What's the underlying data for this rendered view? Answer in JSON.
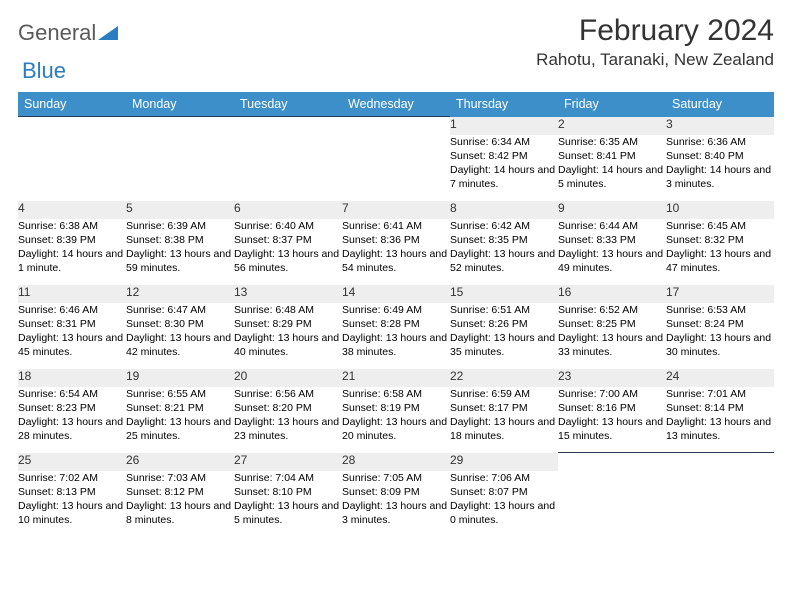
{
  "brand": {
    "part1": "General",
    "part2": "Blue"
  },
  "title": "February 2024",
  "location": "Rahotu, Taranaki, New Zealand",
  "colors": {
    "header_bg": "#3d8fc9",
    "header_text": "#ffffff",
    "daynum_bg": "#eeeeee",
    "rule": "#2a3a55",
    "brand_gray": "#5a5a5a",
    "brand_blue": "#2a7dc0"
  },
  "day_headers": [
    "Sunday",
    "Monday",
    "Tuesday",
    "Wednesday",
    "Thursday",
    "Friday",
    "Saturday"
  ],
  "weeks": [
    [
      null,
      null,
      null,
      null,
      {
        "n": "1",
        "sr": "Sunrise: 6:34 AM",
        "ss": "Sunset: 8:42 PM",
        "dl": "Daylight: 14 hours and 7 minutes."
      },
      {
        "n": "2",
        "sr": "Sunrise: 6:35 AM",
        "ss": "Sunset: 8:41 PM",
        "dl": "Daylight: 14 hours and 5 minutes."
      },
      {
        "n": "3",
        "sr": "Sunrise: 6:36 AM",
        "ss": "Sunset: 8:40 PM",
        "dl": "Daylight: 14 hours and 3 minutes."
      }
    ],
    [
      {
        "n": "4",
        "sr": "Sunrise: 6:38 AM",
        "ss": "Sunset: 8:39 PM",
        "dl": "Daylight: 14 hours and 1 minute."
      },
      {
        "n": "5",
        "sr": "Sunrise: 6:39 AM",
        "ss": "Sunset: 8:38 PM",
        "dl": "Daylight: 13 hours and 59 minutes."
      },
      {
        "n": "6",
        "sr": "Sunrise: 6:40 AM",
        "ss": "Sunset: 8:37 PM",
        "dl": "Daylight: 13 hours and 56 minutes."
      },
      {
        "n": "7",
        "sr": "Sunrise: 6:41 AM",
        "ss": "Sunset: 8:36 PM",
        "dl": "Daylight: 13 hours and 54 minutes."
      },
      {
        "n": "8",
        "sr": "Sunrise: 6:42 AM",
        "ss": "Sunset: 8:35 PM",
        "dl": "Daylight: 13 hours and 52 minutes."
      },
      {
        "n": "9",
        "sr": "Sunrise: 6:44 AM",
        "ss": "Sunset: 8:33 PM",
        "dl": "Daylight: 13 hours and 49 minutes."
      },
      {
        "n": "10",
        "sr": "Sunrise: 6:45 AM",
        "ss": "Sunset: 8:32 PM",
        "dl": "Daylight: 13 hours and 47 minutes."
      }
    ],
    [
      {
        "n": "11",
        "sr": "Sunrise: 6:46 AM",
        "ss": "Sunset: 8:31 PM",
        "dl": "Daylight: 13 hours and 45 minutes."
      },
      {
        "n": "12",
        "sr": "Sunrise: 6:47 AM",
        "ss": "Sunset: 8:30 PM",
        "dl": "Daylight: 13 hours and 42 minutes."
      },
      {
        "n": "13",
        "sr": "Sunrise: 6:48 AM",
        "ss": "Sunset: 8:29 PM",
        "dl": "Daylight: 13 hours and 40 minutes."
      },
      {
        "n": "14",
        "sr": "Sunrise: 6:49 AM",
        "ss": "Sunset: 8:28 PM",
        "dl": "Daylight: 13 hours and 38 minutes."
      },
      {
        "n": "15",
        "sr": "Sunrise: 6:51 AM",
        "ss": "Sunset: 8:26 PM",
        "dl": "Daylight: 13 hours and 35 minutes."
      },
      {
        "n": "16",
        "sr": "Sunrise: 6:52 AM",
        "ss": "Sunset: 8:25 PM",
        "dl": "Daylight: 13 hours and 33 minutes."
      },
      {
        "n": "17",
        "sr": "Sunrise: 6:53 AM",
        "ss": "Sunset: 8:24 PM",
        "dl": "Daylight: 13 hours and 30 minutes."
      }
    ],
    [
      {
        "n": "18",
        "sr": "Sunrise: 6:54 AM",
        "ss": "Sunset: 8:23 PM",
        "dl": "Daylight: 13 hours and 28 minutes."
      },
      {
        "n": "19",
        "sr": "Sunrise: 6:55 AM",
        "ss": "Sunset: 8:21 PM",
        "dl": "Daylight: 13 hours and 25 minutes."
      },
      {
        "n": "20",
        "sr": "Sunrise: 6:56 AM",
        "ss": "Sunset: 8:20 PM",
        "dl": "Daylight: 13 hours and 23 minutes."
      },
      {
        "n": "21",
        "sr": "Sunrise: 6:58 AM",
        "ss": "Sunset: 8:19 PM",
        "dl": "Daylight: 13 hours and 20 minutes."
      },
      {
        "n": "22",
        "sr": "Sunrise: 6:59 AM",
        "ss": "Sunset: 8:17 PM",
        "dl": "Daylight: 13 hours and 18 minutes."
      },
      {
        "n": "23",
        "sr": "Sunrise: 7:00 AM",
        "ss": "Sunset: 8:16 PM",
        "dl": "Daylight: 13 hours and 15 minutes."
      },
      {
        "n": "24",
        "sr": "Sunrise: 7:01 AM",
        "ss": "Sunset: 8:14 PM",
        "dl": "Daylight: 13 hours and 13 minutes."
      }
    ],
    [
      {
        "n": "25",
        "sr": "Sunrise: 7:02 AM",
        "ss": "Sunset: 8:13 PM",
        "dl": "Daylight: 13 hours and 10 minutes."
      },
      {
        "n": "26",
        "sr": "Sunrise: 7:03 AM",
        "ss": "Sunset: 8:12 PM",
        "dl": "Daylight: 13 hours and 8 minutes."
      },
      {
        "n": "27",
        "sr": "Sunrise: 7:04 AM",
        "ss": "Sunset: 8:10 PM",
        "dl": "Daylight: 13 hours and 5 minutes."
      },
      {
        "n": "28",
        "sr": "Sunrise: 7:05 AM",
        "ss": "Sunset: 8:09 PM",
        "dl": "Daylight: 13 hours and 3 minutes."
      },
      {
        "n": "29",
        "sr": "Sunrise: 7:06 AM",
        "ss": "Sunset: 8:07 PM",
        "dl": "Daylight: 13 hours and 0 minutes."
      },
      null,
      null
    ]
  ]
}
